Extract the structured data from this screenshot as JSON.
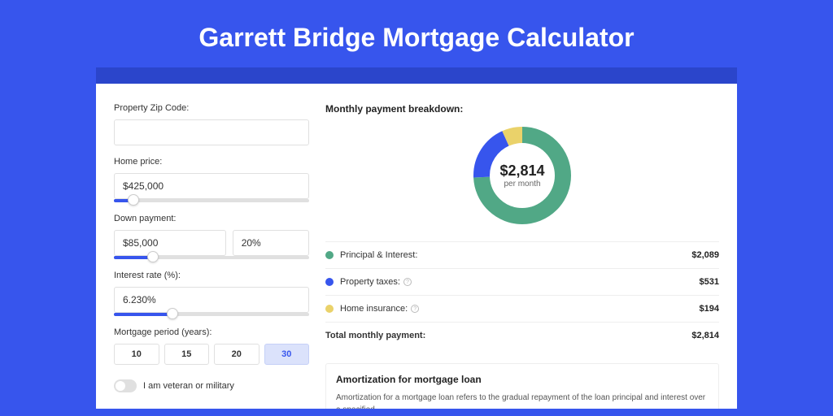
{
  "page": {
    "title": "Garrett Bridge Mortgage Calculator",
    "bg_color": "#3755ed",
    "shadow_color": "#2b45cb"
  },
  "form": {
    "zip": {
      "label": "Property Zip Code:",
      "value": ""
    },
    "home_price": {
      "label": "Home price:",
      "value": "$425,000",
      "slider_pct": 10
    },
    "down_payment": {
      "label": "Down payment:",
      "amount": "$85,000",
      "pct": "20%",
      "slider_pct": 20
    },
    "interest": {
      "label": "Interest rate (%):",
      "value": "6.230%",
      "slider_pct": 30
    },
    "period": {
      "label": "Mortgage period (years):",
      "options": [
        "10",
        "15",
        "20",
        "30"
      ],
      "selected": "30"
    },
    "veteran": {
      "label": "I am veteran or military",
      "on": false
    }
  },
  "breakdown": {
    "title": "Monthly payment breakdown:",
    "center_amount": "$2,814",
    "center_sub": "per month",
    "donut": {
      "radius": 50,
      "stroke": 20,
      "slices": [
        {
          "key": "principal",
          "color": "#51a886",
          "pct": 74.2
        },
        {
          "key": "taxes",
          "color": "#3755ed",
          "pct": 18.9
        },
        {
          "key": "insurance",
          "color": "#ead26a",
          "pct": 6.9
        }
      ]
    },
    "rows": [
      {
        "dot": "#51a886",
        "label": "Principal & Interest:",
        "value": "$2,089",
        "info": false
      },
      {
        "dot": "#3755ed",
        "label": "Property taxes:",
        "value": "$531",
        "info": true
      },
      {
        "dot": "#ead26a",
        "label": "Home insurance:",
        "value": "$194",
        "info": true
      }
    ],
    "total": {
      "label": "Total monthly payment:",
      "value": "$2,814"
    }
  },
  "amortization": {
    "title": "Amortization for mortgage loan",
    "text": "Amortization for a mortgage loan refers to the gradual repayment of the loan principal and interest over a specified"
  }
}
